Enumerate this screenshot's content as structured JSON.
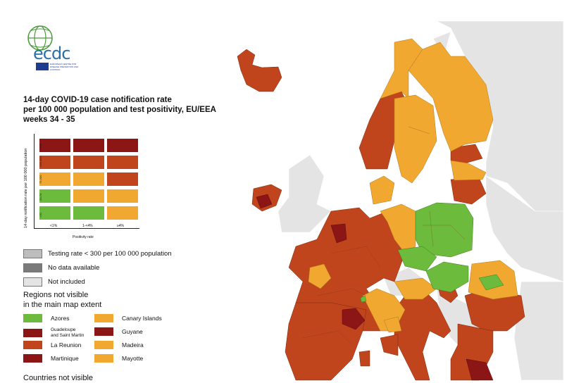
{
  "title_lines": [
    "14-day COVID-19 case notification rate",
    "per 100 000 population and test positivity, EU/EEA",
    "weeks 34 - 35"
  ],
  "logo": {
    "name": "ecdc",
    "subtext": "EUROPEAN CENTRE FOR DISEASE PREVENTION AND CONTROL"
  },
  "matrix": {
    "y_axis_label": "14-day notification rate per 100 000 population",
    "y_ticks": [
      ">500",
      "200-499",
      "75-200",
      "20-74",
      "<20"
    ],
    "x_axis_label": "Positivity rate",
    "x_ticks": [
      "<1%",
      "1-<4%",
      "≥4%"
    ],
    "colors": [
      [
        "#8c1515",
        "#8c1515",
        "#8c1515"
      ],
      [
        "#c0451c",
        "#c0451c",
        "#c0451c"
      ],
      [
        "#f0a830",
        "#f0a830",
        "#c0451c"
      ],
      [
        "#6cbb3c",
        "#f0a830",
        "#f0a830"
      ],
      [
        "#6cbb3c",
        "#6cbb3c",
        "#f0a830"
      ]
    ]
  },
  "legend": [
    {
      "label": "Testing rate < 300 per 100 000 population",
      "color": "#bdbdbd"
    },
    {
      "label": "No data available",
      "color": "#7a7a7a"
    },
    {
      "label": "Not included",
      "color": "#e4e4e4"
    }
  ],
  "regions_heading": [
    "Regions not visible",
    "in the main map extent"
  ],
  "regions_left": [
    {
      "label": "Azores",
      "color": "#6cbb3c"
    },
    {
      "label": "Guadeloupe\nand Saint Martin",
      "color": "#8c1515"
    },
    {
      "label": "La Reunion",
      "color": "#c0451c"
    },
    {
      "label": "Martinique",
      "color": "#8c1515"
    }
  ],
  "regions_right": [
    {
      "label": "Canary Islands",
      "color": "#f0a830"
    },
    {
      "label": "Guyane",
      "color": "#8c1515"
    },
    {
      "label": "Madeira",
      "color": "#f0a830"
    },
    {
      "label": "Mayotte",
      "color": "#f0a830"
    }
  ],
  "countries_heading": "Countries not visible",
  "palette": {
    "green": "#6cbb3c",
    "orange": "#f0a830",
    "red": "#c0451c",
    "dark_red": "#8c1515",
    "not_included": "#e4e4e4",
    "sea": "#ffffff"
  }
}
